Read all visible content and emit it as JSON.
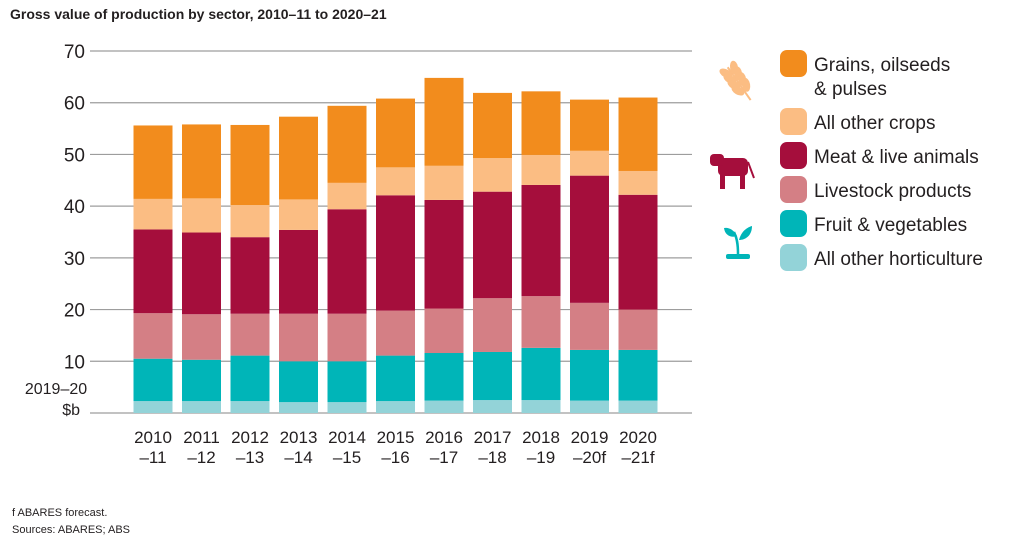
{
  "title": "Gross value of production by sector, 2010–11 to 2020–21",
  "footnote": "f ABARES forecast.",
  "sources": "Sources: ABARES; ABS",
  "unit_label": [
    "2019–20",
    "$b"
  ],
  "icons": [
    "wheat-icon",
    "cow-icon",
    "plant-sprout-icon"
  ],
  "chart_data": {
    "type": "bar",
    "stacked": true,
    "title": "Gross value of production by sector, 2010–11 to 2020–21",
    "xlabel": "",
    "ylabel": "2019–20 $b",
    "ylim": [
      0,
      70
    ],
    "yticks": [
      10,
      20,
      30,
      40,
      50,
      60,
      70
    ],
    "grid": true,
    "legend_position": "right",
    "categories": [
      [
        "2010",
        "–11"
      ],
      [
        "2011",
        "–12"
      ],
      [
        "2012",
        "–13"
      ],
      [
        "2013",
        "–14"
      ],
      [
        "2014",
        "–15"
      ],
      [
        "2015",
        "–16"
      ],
      [
        "2016",
        "–17"
      ],
      [
        "2017",
        "–18"
      ],
      [
        "2018",
        "–19"
      ],
      [
        "2019",
        "–20f"
      ],
      [
        "2020",
        "–21f"
      ]
    ],
    "series": [
      {
        "name": "All other horticulture",
        "color": "#93d3d8",
        "values": [
          2.3,
          2.3,
          2.3,
          2.1,
          2.1,
          2.3,
          2.4,
          2.5,
          2.5,
          2.4,
          2.4
        ]
      },
      {
        "name": "Fruit & vegetables",
        "color": "#00b5b8",
        "values": [
          8.2,
          8.0,
          8.8,
          7.9,
          7.9,
          8.8,
          9.2,
          9.3,
          10.1,
          9.8,
          9.8
        ]
      },
      {
        "name": "Livestock products",
        "color": "#d47f85",
        "values": [
          8.8,
          8.8,
          8.1,
          9.2,
          9.2,
          8.7,
          8.6,
          10.4,
          10.0,
          9.1,
          7.8
        ]
      },
      {
        "name": "Meat & live animals",
        "color": "#a50e3c",
        "values": [
          16.2,
          15.8,
          14.8,
          16.2,
          20.2,
          22.3,
          21.0,
          20.6,
          21.5,
          24.6,
          22.2
        ]
      },
      {
        "name": "All other crops",
        "color": "#fbbd83",
        "values": [
          5.9,
          6.6,
          6.2,
          5.9,
          5.1,
          5.4,
          6.6,
          6.5,
          5.8,
          4.8,
          4.6
        ]
      },
      {
        "name": "Grains, oilseeds & pulses",
        "color": "#f28c1d",
        "values": [
          14.2,
          14.3,
          15.5,
          16.0,
          14.9,
          13.3,
          17.0,
          12.6,
          12.3,
          9.9,
          14.2
        ]
      }
    ]
  },
  "legend": [
    {
      "lines": [
        "Grains, oilseeds",
        "& pulses"
      ],
      "color": "#f28c1d"
    },
    {
      "lines": [
        "All other crops"
      ],
      "color": "#fbbd83"
    },
    {
      "lines": [
        "Meat & live animals"
      ],
      "color": "#a50e3c"
    },
    {
      "lines": [
        "Livestock products"
      ],
      "color": "#d47f85"
    },
    {
      "lines": [
        "Fruit & vegetables"
      ],
      "color": "#00b5b8"
    },
    {
      "lines": [
        "All other horticulture"
      ],
      "color": "#93d3d8"
    }
  ]
}
